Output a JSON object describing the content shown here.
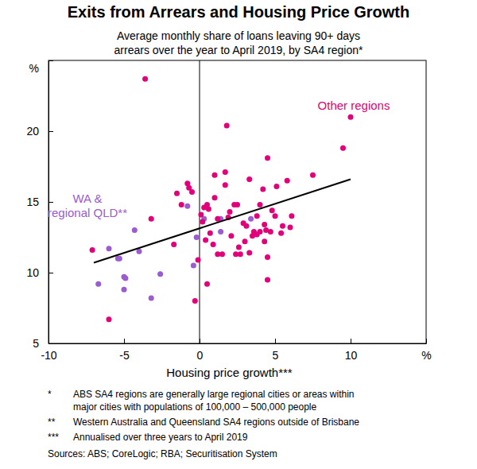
{
  "chart_data": {
    "type": "scatter",
    "title": "Exits from Arrears and Housing Price Growth",
    "subtitle": [
      "Average monthly share of loans leaving 90+ days",
      "arrears over the year to April 2019, by SA4 region*"
    ],
    "x_label": "Housing price growth***",
    "xlim": [
      -10,
      15
    ],
    "xticks": [
      -10,
      -5,
      0,
      5,
      10,
      {
        "value": 15,
        "label": "%"
      }
    ],
    "ylim": [
      5,
      25
    ],
    "yticks": [
      5,
      10,
      15,
      20,
      {
        "value": 25,
        "label": "%"
      }
    ],
    "grid": false,
    "series": [
      {
        "name": "WA & regional QLD**",
        "color": "#9b5bd1",
        "marker": "circle",
        "x": [
          -6.7,
          -6.0,
          -5.4,
          -5.3,
          -5.0,
          -4.9,
          -5.0,
          -4.0,
          -3.2,
          -4.3,
          -2.6,
          -0.8,
          -0.4,
          -0.2,
          0.3,
          1.4,
          1.4,
          3.4
        ],
        "values": [
          9.2,
          11.7,
          11.0,
          11.0,
          9.7,
          9.6,
          8.8,
          11.5,
          8.2,
          13.0,
          9.9,
          14.7,
          10.5,
          12.5,
          13.8,
          12.9,
          13.8,
          13.8
        ]
      },
      {
        "name": "Other regions",
        "color": "#e2007a",
        "marker": "circle",
        "x": [
          -7.1,
          -6.0,
          -3.6,
          -3.2,
          -1.7,
          -1.5,
          -1.2,
          -0.8,
          -0.7,
          -0.5,
          -0.3,
          -0.1,
          0.1,
          0.2,
          0.3,
          0.4,
          0.5,
          0.5,
          0.7,
          0.9,
          1.0,
          1.0,
          1.2,
          1.2,
          1.5,
          1.7,
          1.7,
          1.8,
          1.9,
          2.0,
          2.1,
          2.3,
          2.5,
          2.6,
          2.7,
          2.9,
          3.0,
          3.1,
          3.3,
          3.3,
          3.5,
          3.6,
          3.8,
          3.8,
          4.0,
          4.0,
          4.2,
          4.3,
          4.3,
          4.4,
          4.5,
          4.5,
          4.5,
          4.7,
          4.8,
          5.0,
          5.1,
          5.4,
          5.5,
          5.8,
          6.0,
          6.1,
          7.5,
          9.5,
          10.0,
          0.6,
          2.4
        ],
        "values": [
          11.6,
          6.7,
          23.7,
          13.8,
          12.0,
          15.6,
          14.8,
          16.3,
          16.0,
          15.7,
          8.0,
          10.9,
          14.1,
          13.6,
          14.6,
          12.3,
          9.2,
          14.8,
          12.8,
          12.0,
          15.3,
          16.9,
          13.8,
          11.3,
          11.3,
          17.1,
          16.2,
          20.4,
          13.9,
          14.3,
          12.6,
          14.8,
          14.8,
          11.8,
          11.3,
          13.5,
          12.2,
          13.3,
          16.6,
          11.4,
          12.6,
          12.9,
          14.0,
          12.7,
          12.9,
          14.8,
          15.9,
          12.2,
          13.4,
          13.0,
          9.5,
          18.1,
          11.1,
          12.9,
          14.4,
          14.0,
          16.1,
          12.8,
          13.3,
          16.5,
          13.2,
          14.0,
          16.9,
          18.8,
          21.0,
          14.5,
          11.3
        ]
      },
      {
        "type": "line",
        "color": "#000000",
        "line_style": "solid",
        "x": [
          -7,
          10
        ],
        "values": [
          10.7,
          16.6
        ]
      }
    ],
    "notes": [
      {
        "symbol": "*",
        "lines": [
          "ABS SA4 regions are generally large regional cities or areas within",
          "major cities with populations of 100,000 – 500,000 people"
        ]
      },
      {
        "symbol": "**",
        "lines": [
          "Western Australia and Queensland SA4 regions outside of Brisbane"
        ]
      },
      {
        "symbol": "***",
        "lines": [
          "Annualised over three years to April 2019"
        ]
      }
    ],
    "sources": "Sources: ABS; CoreLogic; RBA; Securitisation System"
  }
}
